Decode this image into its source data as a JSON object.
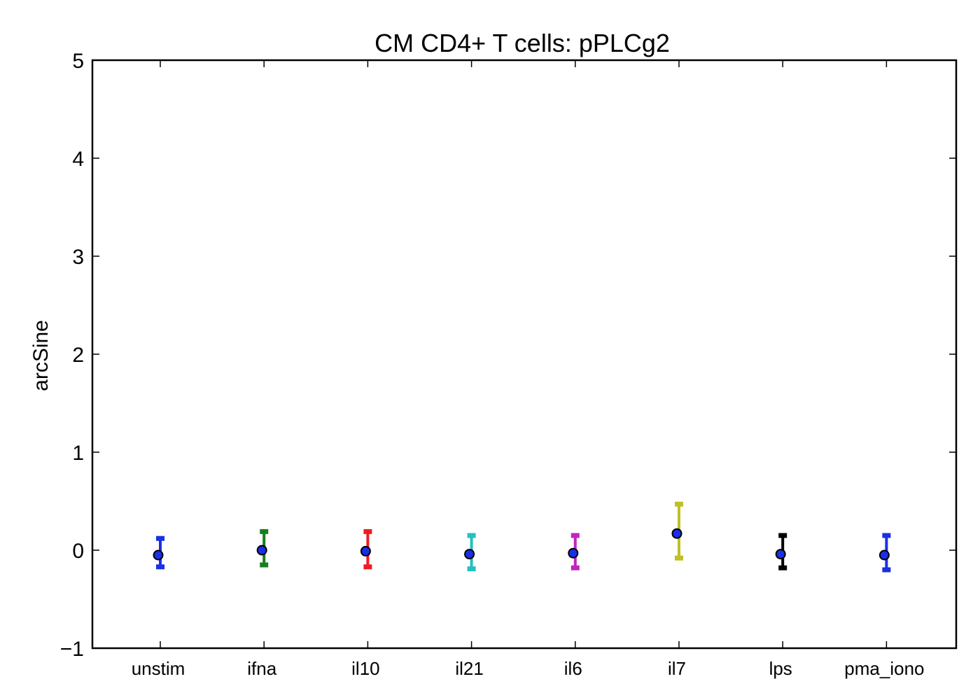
{
  "chart_data": {
    "type": "scatter",
    "title": "CM CD4+ T cells: pPLCg2",
    "xlabel": "",
    "ylabel": "arcSine",
    "ylim": [
      -1,
      5
    ],
    "yticks": [
      "−1",
      "0",
      "1",
      "2",
      "3",
      "4",
      "5"
    ],
    "grid": false,
    "categories": [
      "unstim",
      "ifna",
      "il10",
      "il21",
      "il6",
      "il7",
      "lps",
      "pma_iono"
    ],
    "points": [
      {
        "category": "unstim",
        "mean": -0.05,
        "low": -0.17,
        "high": 0.12,
        "color": "#1a2fe6"
      },
      {
        "category": "ifna",
        "mean": 0.0,
        "low": -0.15,
        "high": 0.19,
        "color": "#17801e"
      },
      {
        "category": "il10",
        "mean": -0.01,
        "low": -0.17,
        "high": 0.19,
        "color": "#ee1c24"
      },
      {
        "category": "il21",
        "mean": -0.04,
        "low": -0.19,
        "high": 0.15,
        "color": "#26bfbf"
      },
      {
        "category": "il6",
        "mean": -0.03,
        "low": -0.18,
        "high": 0.15,
        "color": "#bf26bf"
      },
      {
        "category": "il7",
        "mean": 0.17,
        "low": -0.08,
        "high": 0.47,
        "color": "#bfbf26"
      },
      {
        "category": "lps",
        "mean": -0.04,
        "low": -0.18,
        "high": 0.15,
        "color": "#000000"
      },
      {
        "category": "pma_iono",
        "mean": -0.05,
        "low": -0.2,
        "high": 0.15,
        "color": "#1a2fe6"
      }
    ],
    "marker_color": "#1a2fe6"
  }
}
